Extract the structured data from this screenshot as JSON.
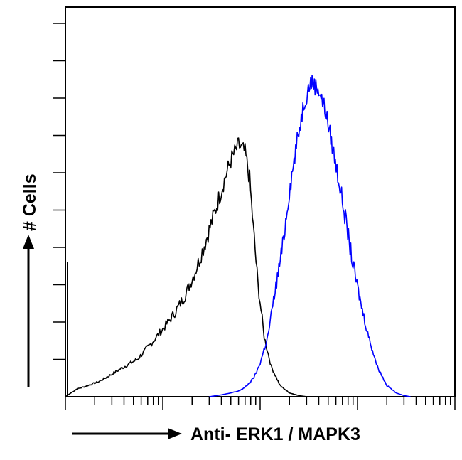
{
  "chart_data": {
    "type": "line",
    "title": "",
    "xlabel": "Anti- ERK1 / MAPK3",
    "ylabel": "# Cells",
    "x_scale": "log",
    "xlim": [
      1,
      10000
    ],
    "ylim": [
      0,
      100
    ],
    "grid": false,
    "legend": "none",
    "series": [
      {
        "color": "#000000",
        "x": [
          1,
          1.3,
          1.7,
          2.2,
          3,
          4,
          5.5,
          7.5,
          10,
          13,
          17,
          22,
          28,
          35,
          42,
          50,
          60,
          70,
          78,
          85,
          95,
          110,
          130,
          160,
          200,
          250,
          300,
          400
        ],
        "y": [
          0,
          2,
          3,
          4,
          6,
          8,
          10,
          14,
          18,
          22,
          27,
          34,
          42,
          50,
          57,
          63,
          67,
          65,
          58,
          45,
          30,
          16,
          8,
          3,
          1,
          0.3,
          0,
          0
        ]
      },
      {
        "color": "#0000ff",
        "x": [
          30,
          40,
          50,
          60,
          70,
          80,
          90,
          100,
          120,
          140,
          170,
          200,
          240,
          280,
          330,
          400,
          470,
          550,
          650,
          780,
          900,
          1100,
          1300,
          1600,
          2000,
          2500,
          3000,
          3500
        ],
        "y": [
          0,
          0.5,
          1,
          1.5,
          2.5,
          4,
          6,
          9,
          16,
          27,
          40,
          55,
          68,
          78,
          84,
          82,
          76,
          67,
          57,
          45,
          35,
          24,
          16,
          8,
          3,
          1,
          0.3,
          0
        ]
      }
    ]
  }
}
